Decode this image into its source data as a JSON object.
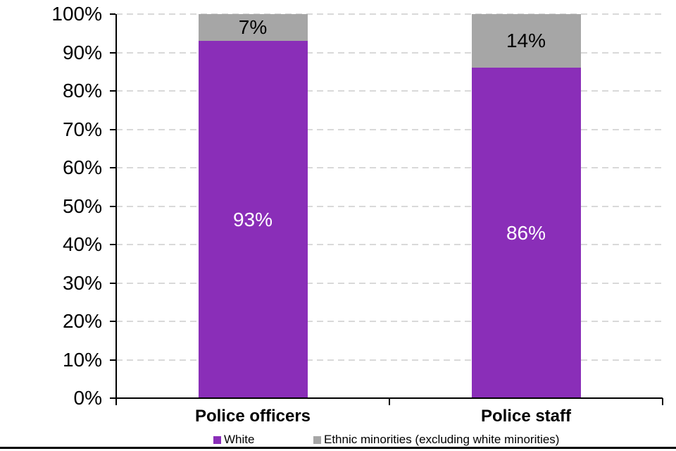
{
  "chart_data": {
    "type": "bar",
    "stacked": true,
    "title": "",
    "categories": [
      "Police officers",
      "Police staff"
    ],
    "series": [
      {
        "name": "White",
        "color": "#8A2EB8",
        "label_color": "#FFFFFF",
        "values": [
          93,
          86
        ]
      },
      {
        "name": "Ethnic minorities (excluding white minorities)",
        "color": "#A6A6A6",
        "label_color": "#000000",
        "values": [
          7,
          14
        ]
      }
    ],
    "value_suffix": "%",
    "ylim": [
      0,
      100
    ],
    "yticks": {
      "values": [
        0,
        10,
        20,
        30,
        40,
        50,
        60,
        70,
        80,
        90,
        100
      ],
      "labels": [
        "0%",
        "10%",
        "20%",
        "30%",
        "40%",
        "50%",
        "60%",
        "70%",
        "80%",
        "90%",
        "100%"
      ]
    },
    "grid": "horizontal-dashed",
    "legend_position": "bottom"
  }
}
